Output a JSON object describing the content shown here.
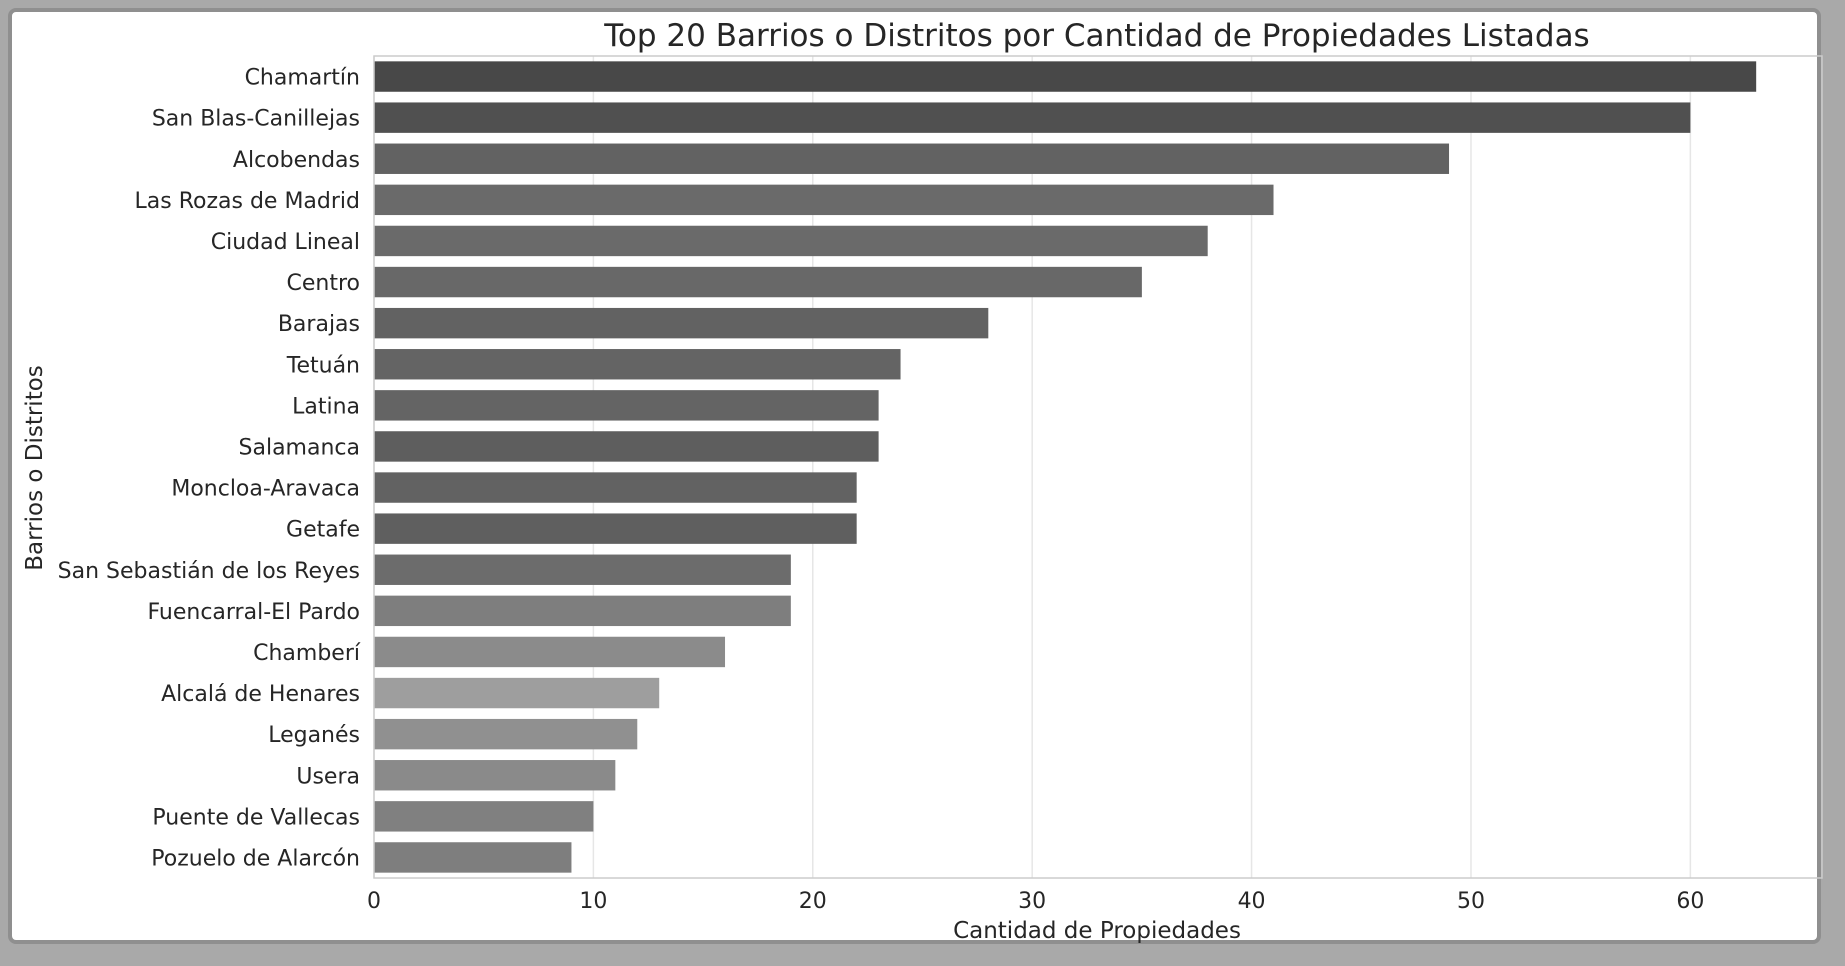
{
  "chart_data": {
    "type": "bar",
    "orientation": "horizontal",
    "title": "Top 20 Barrios o Distritos por Cantidad de Propiedades Listadas",
    "xlabel": "Cantidad de Propiedades",
    "ylabel": "Barrios o Distritos",
    "xlim": [
      0,
      66
    ],
    "xticks": [
      0,
      10,
      20,
      30,
      40,
      50,
      60
    ],
    "grid": "vertical",
    "categories": [
      "Chamartín",
      "San Blas-Canillejas",
      "Alcobendas",
      "Las Rozas de Madrid",
      "Ciudad Lineal",
      "Centro",
      "Barajas",
      "Tetuán",
      "Latina",
      "Salamanca",
      "Moncloa-Aravaca",
      "Getafe",
      "San Sebastián de los Reyes",
      "Fuencarral-El Pardo",
      "Chamberí",
      "Alcalá de Henares",
      "Leganés",
      "Usera",
      "Puente de Vallecas",
      "Pozuelo de Alarcón"
    ],
    "values": [
      63,
      60,
      49,
      41,
      38,
      35,
      28,
      24,
      23,
      23,
      22,
      22,
      19,
      19,
      16,
      13,
      12,
      11,
      10,
      9
    ],
    "colors": [
      "#484848",
      "#505050",
      "#626262",
      "#6a6a6a",
      "#6a6a6a",
      "#686868",
      "#626262",
      "#646464",
      "#646464",
      "#5e5e5e",
      "#626262",
      "#5f5f5f",
      "#6c6c6c",
      "#7e7e7e",
      "#8b8b8b",
      "#9e9e9e",
      "#909090",
      "#8a8a8a",
      "#808080",
      "#7e7e7e"
    ],
    "grid_color": "#e6e6e6",
    "spine_color": "#cccccc"
  }
}
